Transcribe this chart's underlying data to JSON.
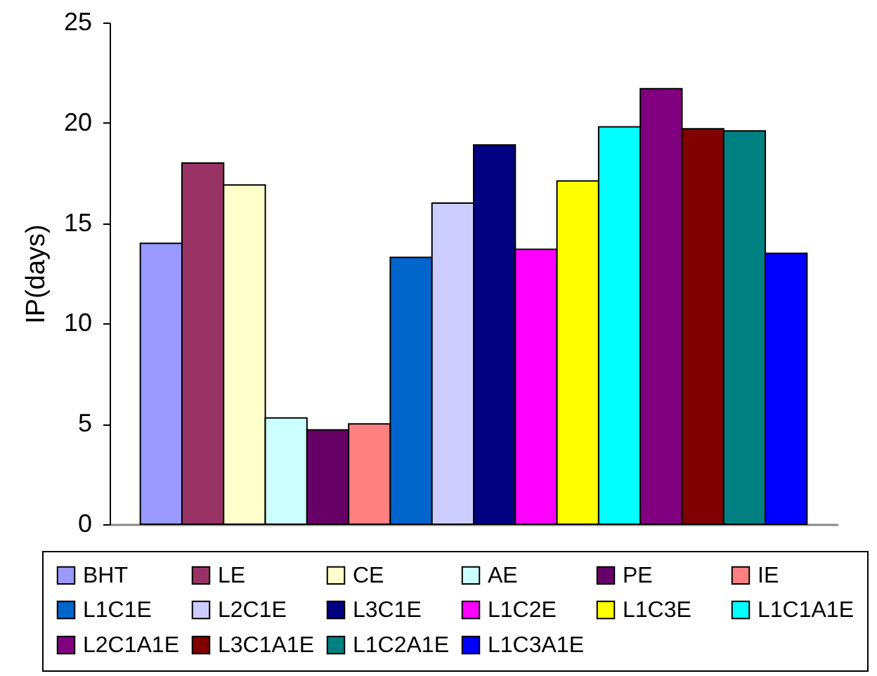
{
  "chart_data": {
    "type": "bar",
    "ylabel": "IP(days)",
    "categories": [
      null
    ],
    "series": [
      {
        "name": "BHT",
        "color": "#9999ff",
        "values": [
          14.0
        ]
      },
      {
        "name": "LE",
        "color": "#993366",
        "values": [
          18.0
        ]
      },
      {
        "name": "CE",
        "color": "#ffffcc",
        "values": [
          16.9
        ]
      },
      {
        "name": "AE",
        "color": "#ccffff",
        "values": [
          5.3
        ]
      },
      {
        "name": "PE",
        "color": "#660066",
        "values": [
          4.7
        ]
      },
      {
        "name": "IE",
        "color": "#ff8080",
        "values": [
          5.0
        ]
      },
      {
        "name": "L1C1E",
        "color": "#0066cc",
        "values": [
          13.3
        ]
      },
      {
        "name": "L2C1E",
        "color": "#ccccff",
        "values": [
          16.0
        ]
      },
      {
        "name": "L3C1E",
        "color": "#000080",
        "values": [
          18.9
        ]
      },
      {
        "name": "L1C2E",
        "color": "#ff00ff",
        "values": [
          13.7
        ]
      },
      {
        "name": "L1C3E",
        "color": "#ffff00",
        "values": [
          17.1
        ]
      },
      {
        "name": "L1C1A1E",
        "color": "#00ffff",
        "values": [
          19.8
        ]
      },
      {
        "name": "L2C1A1E",
        "color": "#800080",
        "values": [
          21.7
        ]
      },
      {
        "name": "L3C1A1E",
        "color": "#800000",
        "values": [
          19.7
        ]
      },
      {
        "name": "L1C2A1E",
        "color": "#008080",
        "values": [
          19.6
        ]
      },
      {
        "name": "L1C3A1E",
        "color": "#0000ff",
        "values": [
          13.5
        ]
      }
    ],
    "ylim": [
      0,
      25
    ],
    "yticks": [
      0,
      5,
      10,
      15,
      20,
      25
    ],
    "grid": false,
    "legend": "bottom"
  }
}
